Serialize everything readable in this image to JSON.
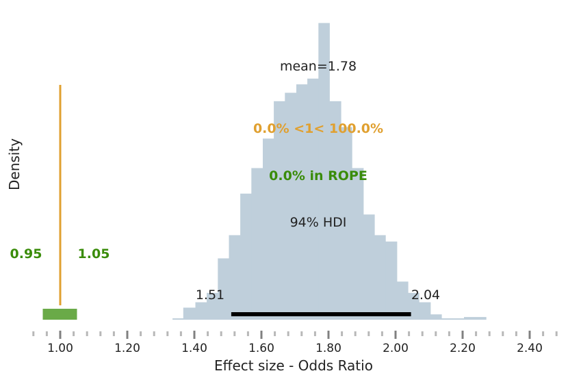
{
  "chart_data": {
    "type": "histogram",
    "xlabel": "Effect size - Odds Ratio",
    "ylabel": "Density",
    "xlim": [
      0.92,
      2.5
    ],
    "ylim": [
      0,
      1
    ],
    "x_ticks": [
      1.0,
      1.2,
      1.4,
      1.6,
      1.8,
      2.0,
      2.2,
      2.4
    ],
    "x_tick_labels": [
      "1.00",
      "1.20",
      "1.40",
      "1.60",
      "1.80",
      "2.00",
      "2.20",
      "2.40"
    ],
    "bin_edges": [
      1.335,
      1.367,
      1.403,
      1.437,
      1.47,
      1.503,
      1.537,
      1.57,
      1.604,
      1.637,
      1.67,
      1.704,
      1.737,
      1.77,
      1.803,
      1.837,
      1.87,
      1.904,
      1.937,
      1.97,
      2.004,
      2.037,
      2.07,
      2.104,
      2.137,
      2.17,
      2.204,
      2.27
    ],
    "densities": [
      0.007,
      0.063,
      0.091,
      0.14,
      0.32,
      0.441,
      0.658,
      0.791,
      0.945,
      1.14,
      1.184,
      1.228,
      1.258,
      1.548,
      1.14,
      1.005,
      0.791,
      0.549,
      0.441,
      0.408,
      0.199,
      0.14,
      0.091,
      0.028,
      0.007,
      0.007,
      0.014
    ],
    "mean_label": "mean=1.78",
    "hdi": {
      "prob_label": "94% HDI",
      "low": 1.51,
      "high": 2.04,
      "low_label": "1.51",
      "high_label": "2.04"
    },
    "reference": {
      "value": 1.0,
      "label": "0.0% <1< 100.0%",
      "color": "#e0a030"
    },
    "rope": {
      "low": 0.95,
      "high": 1.05,
      "low_label": "0.95",
      "high_label": "1.05",
      "label": "0.0% in ROPE",
      "color": "#3a8c0a",
      "bar_color": "#6aaa48"
    },
    "hist_color": "#bfcfdb"
  }
}
